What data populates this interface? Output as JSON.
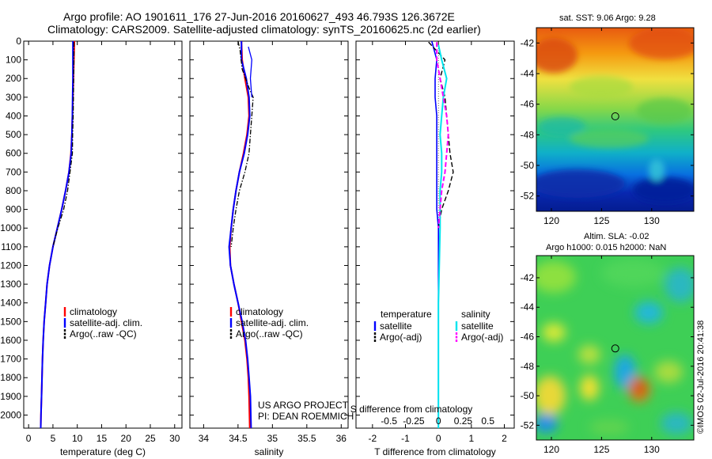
{
  "header": {
    "line1": "Argo profile: AO 1901611_176 27-Jun-2016 20160627_493 46.793S 126.3672E",
    "line2": "Climatology: CARS2009. Satellite-adjusted climatology: synTS_20160625.nc (2d earlier)"
  },
  "labels": {
    "project": "US ARGO PROJECT",
    "pi": "PI: DEAN ROEMMICH",
    "sst_title": "sat. SST: 9.06 Argo: 9.28",
    "sla_title1": "Altim. SLA: -0.02",
    "sla_title2": "Argo h1000: 0.015 h2000: NaN",
    "stamp": "©IMOS 02-Jul-2016 20:41:38"
  },
  "colors": {
    "climatology": "#ff0000",
    "satellite_adj": "#0000ff",
    "argo": "#000000",
    "salinity_satellite": "#00e5ee",
    "salinity_argo": "#ff00ff"
  },
  "chart_data": [
    {
      "type": "line",
      "panel": "temperature",
      "xlabel": "temperature (deg C)",
      "ylabel": "",
      "xlim": [
        -1,
        31.5
      ],
      "ylim": [
        0,
        2070
      ],
      "y_reversed": true,
      "xticks": [
        0,
        5,
        10,
        15,
        20,
        25,
        30
      ],
      "yticks": [
        0,
        100,
        200,
        300,
        400,
        500,
        600,
        700,
        800,
        900,
        1000,
        1100,
        1200,
        1300,
        1400,
        1500,
        1600,
        1700,
        1800,
        1900,
        2000
      ],
      "legend": [
        "climatology",
        "satellite-adj. clim.",
        "Argo(..raw -QC)"
      ],
      "series": [
        {
          "name": "climatology",
          "style": "solid",
          "x": [
            9.4,
            9.3,
            9.2,
            9.1,
            9.0,
            8.9,
            8.7,
            8.3,
            7.6,
            6.8,
            5.9,
            5.0,
            4.3,
            3.8,
            3.5,
            3.2,
            3.0,
            2.85,
            2.75,
            2.65,
            2.55,
            2.5
          ],
          "y": [
            0,
            100,
            200,
            300,
            400,
            500,
            600,
            700,
            800,
            900,
            1000,
            1100,
            1200,
            1300,
            1400,
            1500,
            1600,
            1700,
            1800,
            1900,
            2000,
            2070
          ]
        },
        {
          "name": "satellite-adj. clim.",
          "style": "solid",
          "x": [
            9.1,
            9.1,
            9.1,
            9.05,
            9.0,
            8.9,
            8.75,
            8.3,
            7.6,
            6.8,
            5.9,
            5.0,
            4.3,
            3.8,
            3.5,
            3.2,
            3.0,
            2.85,
            2.75,
            2.65,
            2.55,
            2.5
          ],
          "y": [
            0,
            100,
            200,
            300,
            400,
            500,
            600,
            700,
            800,
            900,
            1000,
            1100,
            1200,
            1300,
            1400,
            1500,
            1600,
            1700,
            1800,
            1900,
            2000,
            2070
          ]
        },
        {
          "name": "Argo(..raw -QC)",
          "style": "dashdot",
          "x": [
            9.3,
            9.3,
            9.25,
            9.2,
            9.15,
            9.05,
            9.0,
            8.5,
            8.0,
            7.2,
            6.0,
            5.0
          ],
          "y": [
            5,
            100,
            200,
            300,
            400,
            500,
            600,
            700,
            800,
            900,
            1000,
            1100
          ]
        }
      ]
    },
    {
      "type": "line",
      "panel": "salinity",
      "xlabel": "salinity",
      "ylabel": "",
      "xlim": [
        33.8,
        36.1
      ],
      "ylim": [
        0,
        2070
      ],
      "y_reversed": true,
      "xticks": [
        34,
        34.5,
        35,
        35.5,
        36
      ],
      "legend": [
        "climatology",
        "satellite-adj. clim.",
        "Argo(..raw -QC)"
      ],
      "series": [
        {
          "name": "climatology",
          "style": "solid",
          "x": [
            34.55,
            34.56,
            34.6,
            34.65,
            34.66,
            34.63,
            34.58,
            34.52,
            34.47,
            34.43,
            34.4,
            34.38,
            34.39,
            34.44,
            34.5,
            34.55,
            34.6,
            34.63,
            34.65,
            34.66,
            34.67
          ],
          "y": [
            0,
            100,
            200,
            300,
            400,
            500,
            600,
            700,
            800,
            900,
            1000,
            1100,
            1200,
            1300,
            1400,
            1500,
            1600,
            1700,
            1800,
            1900,
            2070
          ]
        },
        {
          "name": "satellite-adj. clim.",
          "style": "solid",
          "x": [
            34.55,
            34.55,
            34.62,
            34.66,
            34.67,
            34.64,
            34.59,
            34.52,
            34.47,
            34.43,
            34.4,
            34.37,
            34.39,
            34.44,
            34.5,
            34.56,
            34.61,
            34.64,
            34.66,
            34.68,
            34.69
          ],
          "y": [
            0,
            100,
            200,
            300,
            400,
            500,
            600,
            700,
            800,
            900,
            1000,
            1100,
            1200,
            1300,
            1400,
            1500,
            1600,
            1700,
            1800,
            1900,
            2070
          ]
        },
        {
          "name": "Argo(..raw -QC)",
          "style": "dashdot",
          "x": [
            34.5,
            34.53,
            34.56,
            34.66,
            34.72,
            34.7,
            34.68,
            34.66,
            34.6,
            34.52,
            34.47,
            34.43,
            34.4
          ],
          "y": [
            0,
            50,
            150,
            250,
            300,
            400,
            500,
            600,
            700,
            800,
            900,
            1000,
            1100
          ]
        },
        {
          "name": "",
          "style": "solid",
          "x": [
            34.65,
            34.7,
            34.68,
            34.7
          ],
          "y": [
            30,
            100,
            200,
            300
          ]
        }
      ]
    },
    {
      "type": "line",
      "panel": "difference",
      "xlabel": "T difference from climatology",
      "x2label": "S difference from climatology",
      "xlim": [
        -2.5,
        2.3
      ],
      "ylim": [
        0,
        2070
      ],
      "y_reversed": true,
      "xticks": [
        -2,
        -1,
        0,
        1,
        2
      ],
      "x2ticks": [
        "-0.5",
        "-0.25",
        "0",
        "0.25",
        "0.5"
      ],
      "legend_groups": [
        "temperature",
        "salinity"
      ],
      "legend": [
        "satellite",
        "Argo(-adj)",
        "satellite",
        "Argo(-adj)"
      ],
      "series": [
        {
          "name": "temperature satellite",
          "style": "solid",
          "x": [
            -0.2,
            -0.05,
            -0.1,
            -0.1,
            -0.05,
            -0.05,
            -0.05,
            -0.05,
            -0.05,
            -0.05,
            0.0,
            0.0,
            0.0,
            0.0
          ],
          "y": [
            0,
            100,
            200,
            300,
            400,
            500,
            600,
            700,
            800,
            900,
            1000,
            1200,
            1600,
            2070
          ]
        },
        {
          "name": "temperature Argo(-adj)",
          "style": "dashed",
          "x": [
            -0.3,
            0.2,
            0.05,
            0.2,
            0.25,
            0.3,
            0.35,
            0.45,
            0.3,
            0.1,
            0.0
          ],
          "y": [
            5,
            100,
            200,
            300,
            400,
            500,
            600,
            700,
            800,
            900,
            1000
          ]
        },
        {
          "name": "salinity satellite",
          "style": "solid",
          "x": [
            0.0,
            0.1,
            0.25,
            0.15,
            0.1,
            0.05,
            0.1,
            0.1,
            0.05,
            0.05,
            0.05,
            0.0,
            0.0
          ],
          "y": [
            20,
            100,
            200,
            300,
            400,
            500,
            600,
            700,
            800,
            900,
            1000,
            1400,
            2070
          ]
        },
        {
          "name": "salinity Argo(-adj)",
          "style": "dashed",
          "x": [
            -0.05,
            -0.05,
            0.05,
            0.15,
            0.25,
            0.3,
            0.25,
            0.2,
            0.1,
            0.05,
            0.0
          ],
          "y": [
            5,
            100,
            200,
            300,
            400,
            500,
            600,
            700,
            800,
            900,
            1000
          ]
        }
      ]
    },
    {
      "type": "heatmap",
      "panel": "sat_sst_map",
      "title": "sat. SST: 9.06 Argo: 9.28",
      "xlim": [
        118.5,
        134.2
      ],
      "ylim": [
        -53,
        -41
      ],
      "xticks": [
        120,
        125,
        130
      ],
      "yticks": [
        -42,
        -44,
        -46,
        -48,
        -50,
        -52
      ],
      "marker": {
        "lon": 126.3672,
        "lat": -46.793
      }
    },
    {
      "type": "heatmap",
      "panel": "altimetry_sla_map",
      "title": "Altim. SLA: -0.02",
      "subtitle": "Argo h1000: 0.015 h2000: NaN",
      "xlim": [
        118.5,
        134.2
      ],
      "ylim": [
        -53,
        -40.5
      ],
      "xticks": [
        120,
        125,
        130
      ],
      "yticks": [
        -42,
        -44,
        -46,
        -48,
        -50,
        -52
      ],
      "marker": {
        "lon": 126.3672,
        "lat": -46.793
      }
    }
  ]
}
